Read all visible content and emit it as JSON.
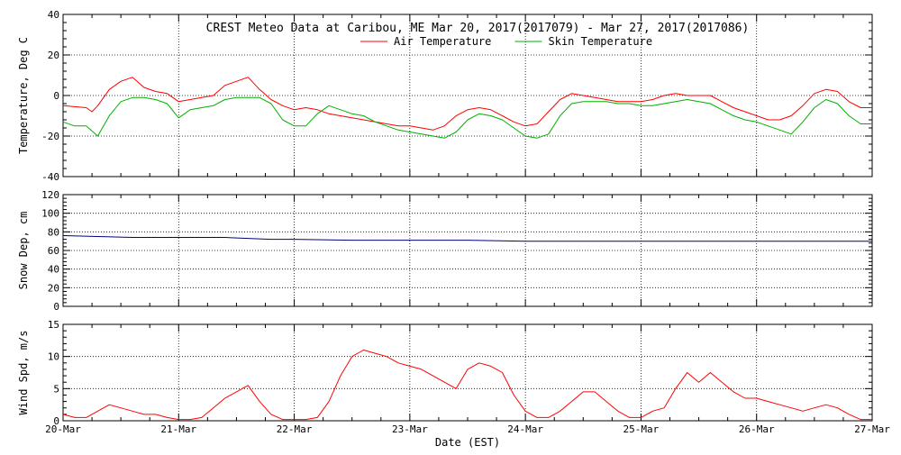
{
  "chart_data": {
    "title": "CREST Meteo Data at Caribou, ME   Mar 20, 2017(2017079) - Mar 27, 2017(2017086)",
    "xlabel": "Date (EST)",
    "x_ticks": [
      "20-Mar",
      "21-Mar",
      "22-Mar",
      "23-Mar",
      "24-Mar",
      "25-Mar",
      "26-Mar",
      "27-Mar"
    ],
    "x_range_days": [
      0,
      7
    ],
    "colors": {
      "air": "#ff0000",
      "skin": "#00b000",
      "snow": "#000080",
      "wind": "#ff0000",
      "grid": "#000000"
    },
    "panels": [
      {
        "name": "temperature",
        "type": "line",
        "ylabel": "Temperature, Deg C",
        "ylim": [
          -40,
          40
        ],
        "y_ticks": [
          "-40",
          "-20",
          "0",
          "20",
          "40"
        ],
        "legend_position": "top-center",
        "series": [
          {
            "name": "Air Temperature",
            "color": "#ff0000",
            "x": [
              0.0,
              0.1,
              0.2,
              0.25,
              0.3,
              0.4,
              0.5,
              0.6,
              0.7,
              0.8,
              0.9,
              1.0,
              1.1,
              1.2,
              1.3,
              1.4,
              1.5,
              1.6,
              1.7,
              1.8,
              1.9,
              2.0,
              2.1,
              2.2,
              2.3,
              2.4,
              2.5,
              2.6,
              2.7,
              2.8,
              2.9,
              3.0,
              3.1,
              3.2,
              3.3,
              3.4,
              3.5,
              3.6,
              3.7,
              3.8,
              3.9,
              4.0,
              4.1,
              4.2,
              4.3,
              4.4,
              4.5,
              4.6,
              4.7,
              4.8,
              4.9,
              5.0,
              5.1,
              5.2,
              5.3,
              5.4,
              5.5,
              5.6,
              5.7,
              5.8,
              5.9,
              6.0,
              6.1,
              6.2,
              6.3,
              6.4,
              6.5,
              6.6,
              6.7,
              6.8,
              6.9,
              7.0
            ],
            "values": [
              -5,
              -5.5,
              -6,
              -8,
              -5,
              3,
              7,
              9,
              4,
              2,
              1,
              -3,
              -2,
              -1,
              0,
              5,
              7,
              9,
              3,
              -2,
              -5,
              -7,
              -6,
              -7,
              -9,
              -10,
              -11,
              -12,
              -13,
              -14,
              -15,
              -15,
              -16,
              -17,
              -15,
              -10,
              -7,
              -6,
              -7,
              -10,
              -13,
              -15,
              -14,
              -8,
              -2,
              1,
              0,
              -1,
              -2,
              -3,
              -3,
              -3,
              -2,
              0,
              1,
              0,
              0,
              0,
              -3,
              -6,
              -8,
              -10,
              -12,
              -12,
              -10,
              -5,
              1,
              3,
              2,
              -3,
              -6,
              -6
            ]
          },
          {
            "name": "Skin Temperature",
            "color": "#00b000",
            "x": [
              0.0,
              0.1,
              0.2,
              0.3,
              0.4,
              0.5,
              0.6,
              0.7,
              0.8,
              0.9,
              1.0,
              1.1,
              1.2,
              1.3,
              1.4,
              1.5,
              1.6,
              1.7,
              1.8,
              1.9,
              2.0,
              2.1,
              2.2,
              2.3,
              2.4,
              2.5,
              2.6,
              2.7,
              2.8,
              2.9,
              3.0,
              3.1,
              3.2,
              3.3,
              3.4,
              3.5,
              3.6,
              3.7,
              3.8,
              3.9,
              4.0,
              4.1,
              4.2,
              4.3,
              4.4,
              4.5,
              4.6,
              4.7,
              4.8,
              4.9,
              5.0,
              5.1,
              5.2,
              5.3,
              5.4,
              5.5,
              5.6,
              5.7,
              5.8,
              5.9,
              6.0,
              6.1,
              6.2,
              6.3,
              6.4,
              6.5,
              6.6,
              6.7,
              6.8,
              6.9,
              7.0
            ],
            "values": [
              -13,
              -15,
              -15,
              -20,
              -10,
              -3,
              -1,
              -1,
              -2,
              -4,
              -11,
              -7,
              -6,
              -5,
              -2,
              -1,
              -1,
              -1,
              -4,
              -12,
              -15,
              -15,
              -9,
              -5,
              -7,
              -9,
              -10,
              -13,
              -15,
              -17,
              -18,
              -19,
              -20,
              -21,
              -18,
              -12,
              -9,
              -10,
              -12,
              -16,
              -20,
              -21,
              -19,
              -10,
              -4,
              -3,
              -3,
              -3,
              -4,
              -4,
              -5,
              -5,
              -4,
              -3,
              -2,
              -3,
              -4,
              -7,
              -10,
              -12,
              -13,
              -15,
              -17,
              -19,
              -13,
              -6,
              -2,
              -4,
              -10,
              -14,
              -14
            ]
          }
        ]
      },
      {
        "name": "snow-depth",
        "type": "line",
        "ylabel": "Snow Dep, cm",
        "ylim": [
          0,
          120
        ],
        "y_ticks": [
          "0",
          "20",
          "40",
          "60",
          "80",
          "100",
          "120"
        ],
        "series": [
          {
            "color": "#000080",
            "x": [
              0.0,
              0.3,
              0.6,
              1.0,
              1.4,
              1.6,
              1.8,
              2.0,
              2.5,
              3.0,
              3.5,
              4.0,
              4.5,
              5.0,
              5.5,
              6.0,
              6.5,
              7.0
            ],
            "values": [
              76,
              75,
              74,
              74,
              74,
              73,
              72,
              72,
              71,
              71,
              71,
              70,
              70,
              70,
              70,
              70,
              70,
              70
            ]
          }
        ]
      },
      {
        "name": "wind-speed",
        "type": "line",
        "ylabel": "Wind Spd, m/s",
        "ylim": [
          0,
          15
        ],
        "y_ticks": [
          "0",
          "5",
          "10",
          "15"
        ],
        "series": [
          {
            "color": "#ff0000",
            "x": [
              0.0,
              0.1,
              0.2,
              0.3,
              0.4,
              0.5,
              0.6,
              0.7,
              0.8,
              0.9,
              1.0,
              1.1,
              1.2,
              1.3,
              1.4,
              1.5,
              1.6,
              1.7,
              1.8,
              1.9,
              2.0,
              2.1,
              2.2,
              2.3,
              2.4,
              2.5,
              2.6,
              2.7,
              2.8,
              2.9,
              3.0,
              3.1,
              3.2,
              3.3,
              3.4,
              3.5,
              3.6,
              3.7,
              3.8,
              3.9,
              4.0,
              4.1,
              4.2,
              4.3,
              4.4,
              4.5,
              4.6,
              4.7,
              4.8,
              4.9,
              5.0,
              5.1,
              5.2,
              5.3,
              5.4,
              5.5,
              5.6,
              5.7,
              5.8,
              5.9,
              6.0,
              6.1,
              6.2,
              6.3,
              6.4,
              6.5,
              6.6,
              6.7,
              6.8,
              6.9,
              7.0
            ],
            "values": [
              1,
              0.5,
              0.5,
              1.5,
              2.5,
              2,
              1.5,
              1,
              1,
              0.5,
              0.2,
              0.2,
              0.5,
              2,
              3.5,
              4.5,
              5.5,
              3,
              1,
              0.2,
              0.2,
              0.2,
              0.5,
              3,
              7,
              10,
              11,
              10.5,
              10,
              9,
              8.5,
              8,
              7,
              6,
              5,
              8,
              9,
              8.5,
              7.5,
              4,
              1.5,
              0.5,
              0.5,
              1.5,
              3,
              4.5,
              4.5,
              3,
              1.5,
              0.5,
              0.5,
              1.5,
              2,
              5,
              7.5,
              6,
              7.5,
              6,
              4.5,
              3.5,
              3.5,
              3,
              2.5,
              2,
              1.5,
              2,
              2.5,
              2,
              1,
              0.2,
              0.2
            ]
          }
        ]
      }
    ]
  }
}
